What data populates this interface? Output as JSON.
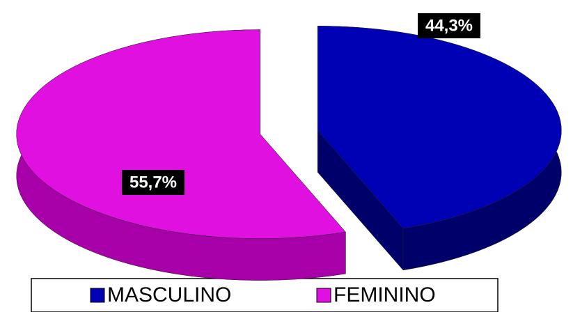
{
  "chart_data": {
    "type": "pie3d",
    "categories": [
      "MASCULINO",
      "FEMININO"
    ],
    "values": [
      44.3,
      55.7
    ],
    "value_labels": [
      "44,3%",
      "55,7%"
    ],
    "colors": [
      "#0000b4",
      "#e010e0"
    ],
    "side_colors": [
      "#00006a",
      "#a800a8"
    ]
  }
}
